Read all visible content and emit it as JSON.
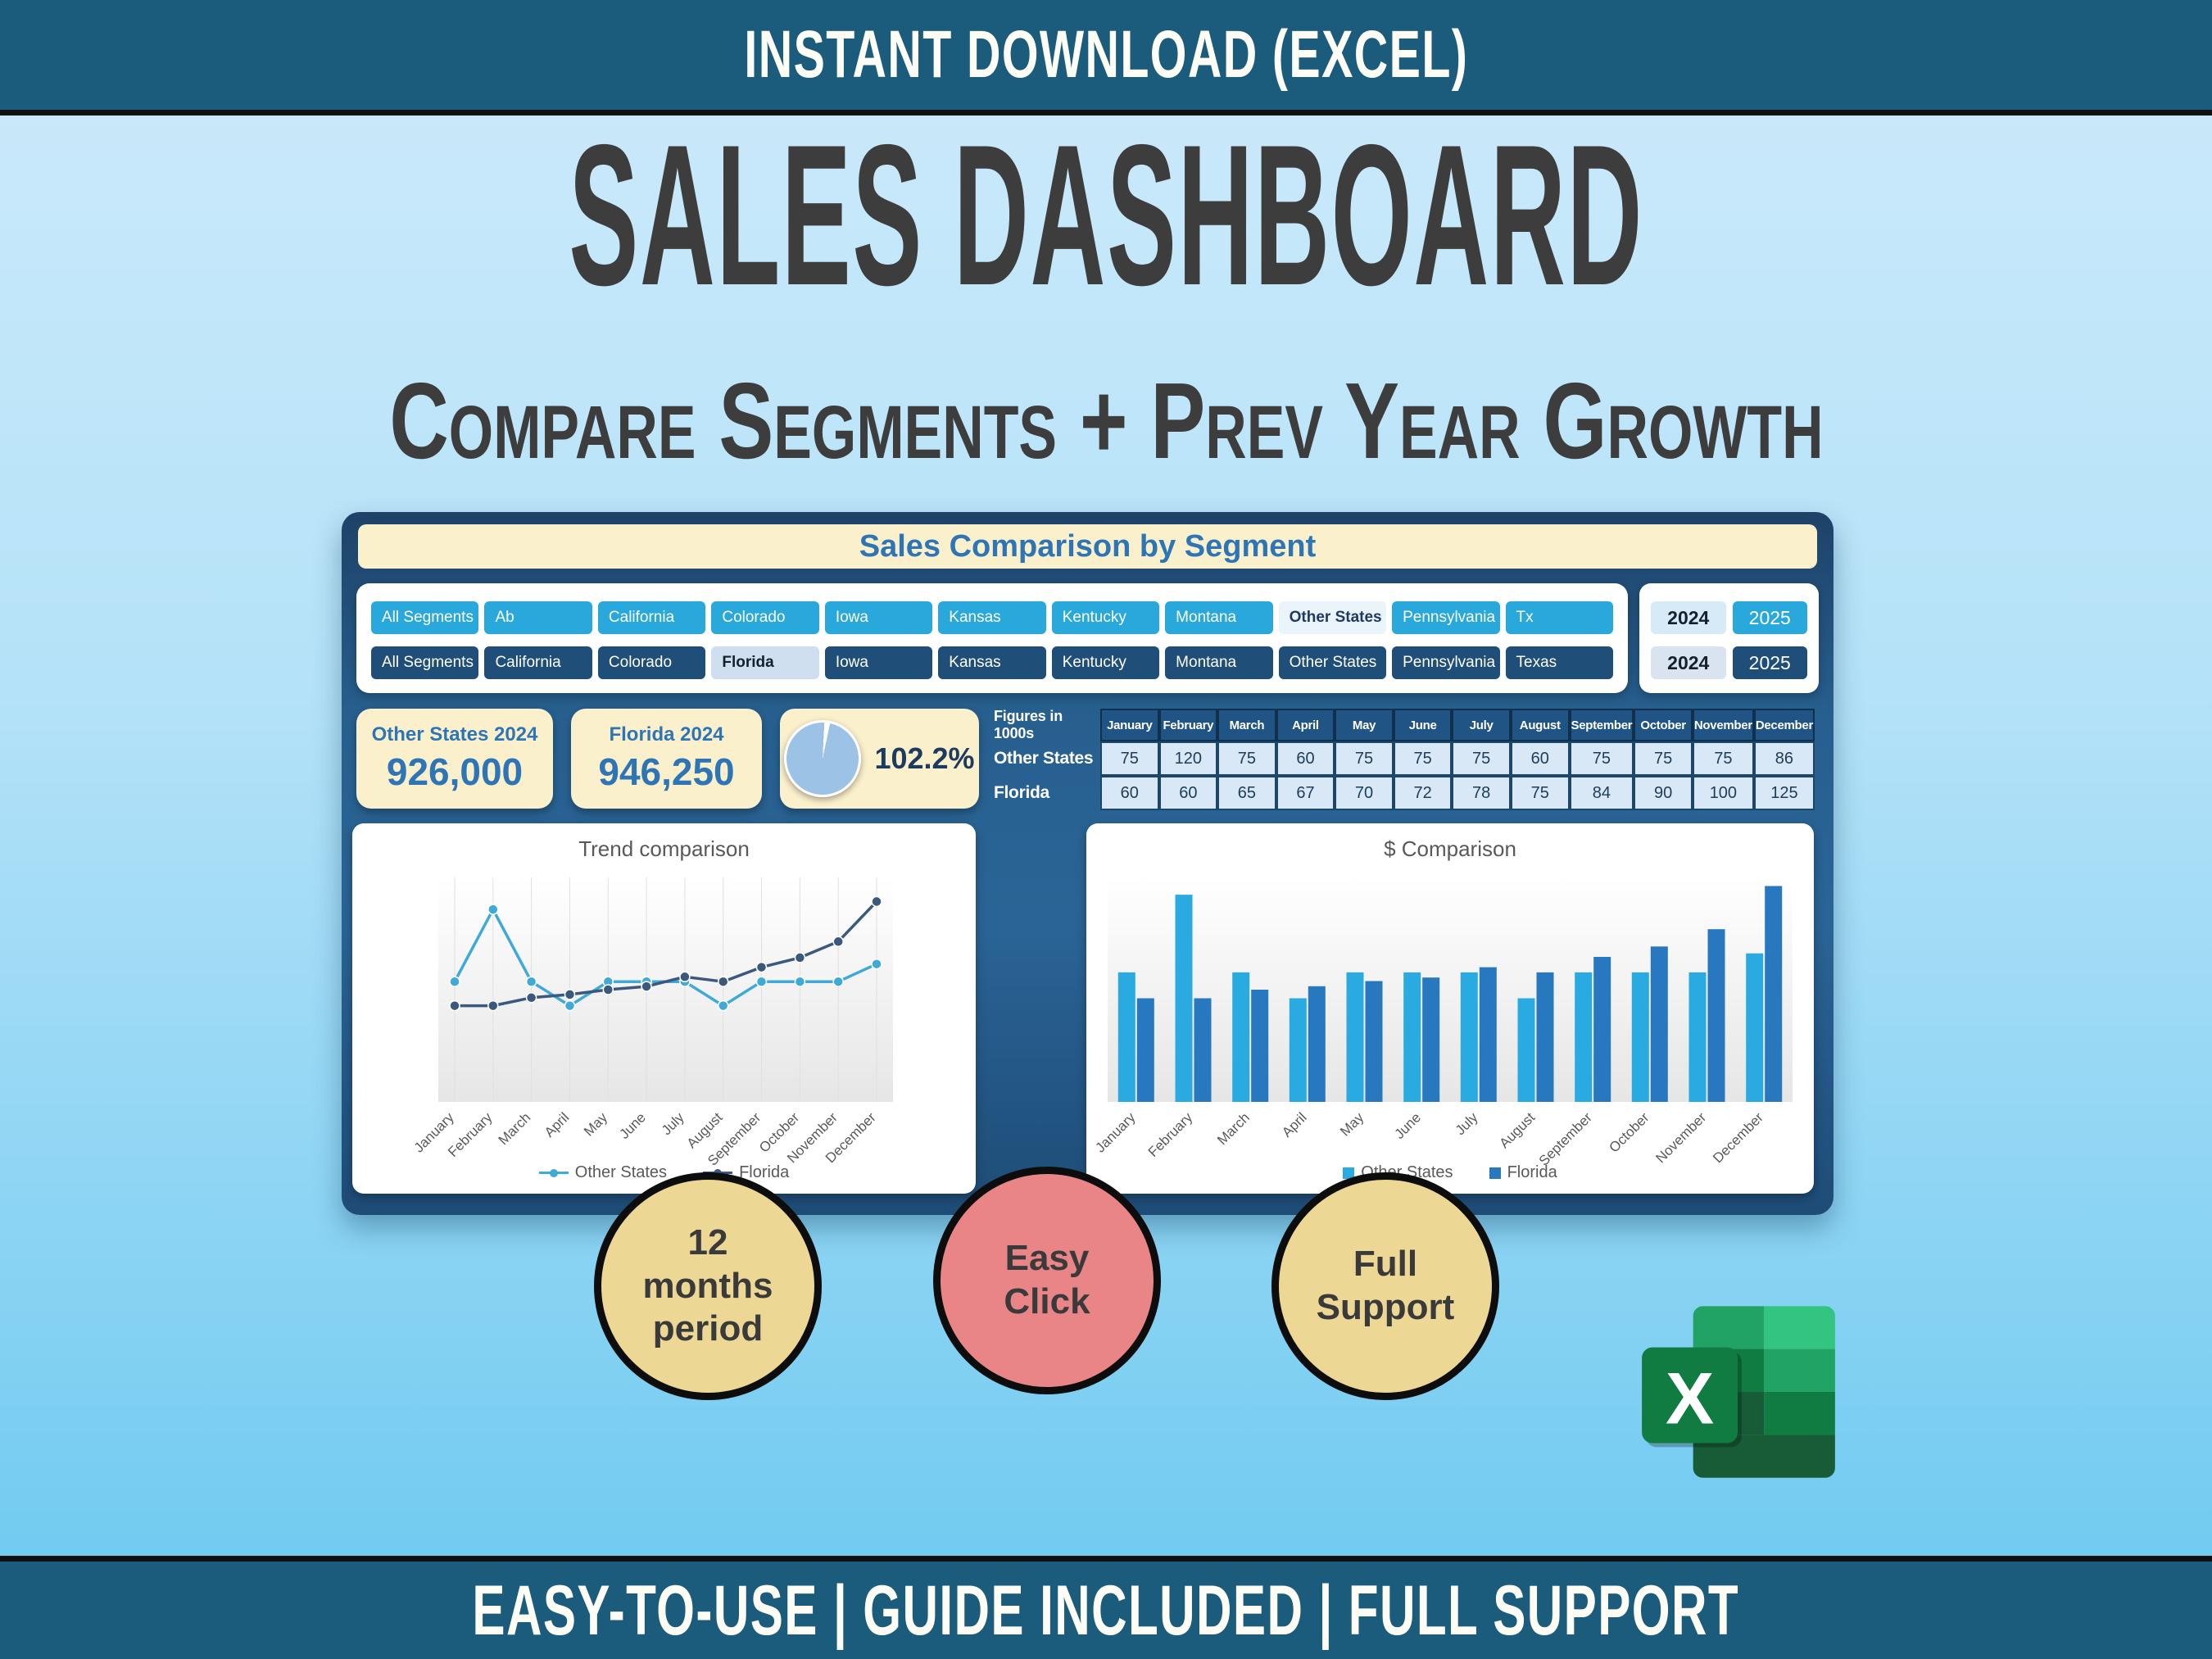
{
  "banner_top": {
    "text": "INSTANT DOWNLOAD (EXCEL)"
  },
  "hero": {
    "title": "SALES DASHBOARD",
    "subtitle": "Compare Segments + Prev Year Growth"
  },
  "dashboard": {
    "header": "Sales Comparison by Segment",
    "slicers": {
      "row_2024": {
        "items": [
          "All Segments",
          "Ab",
          "California",
          "Colorado",
          "Iowa",
          "Kansas",
          "Kentucky",
          "Montana",
          "Other States",
          "Pennsylvania",
          "Tx"
        ],
        "selected": "Other States"
      },
      "row_2025": {
        "items": [
          "All Segments",
          "California",
          "Colorado",
          "Florida",
          "Iowa",
          "Kansas",
          "Kentucky",
          "Montana",
          "Other States",
          "Pennsylvania",
          "Texas"
        ],
        "selected": "Florida"
      },
      "years_row1": {
        "options": [
          "2024",
          "2025"
        ],
        "selected": "2024"
      },
      "years_row2": {
        "options": [
          "2024",
          "2025"
        ],
        "selected": "2024"
      }
    },
    "kpis": {
      "other_states": {
        "label": "Other States 2024",
        "value": "926,000"
      },
      "florida": {
        "label": "Florida 2024",
        "value": "946,250"
      },
      "growth": {
        "value": "102.2%",
        "pie_percent": 102.2
      }
    },
    "table": {
      "corner_label": "Figures in 1000s",
      "columns": [
        "January",
        "February",
        "March",
        "April",
        "May",
        "June",
        "July",
        "August",
        "September",
        "October",
        "November",
        "December"
      ],
      "rows": [
        {
          "label": "Other States",
          "values": [
            75,
            120,
            75,
            60,
            75,
            75,
            75,
            60,
            75,
            75,
            75,
            86
          ]
        },
        {
          "label": "Florida",
          "values": [
            60,
            60,
            65,
            67,
            70,
            72,
            78,
            75,
            84,
            90,
            100,
            125
          ]
        }
      ]
    }
  },
  "chart_data": [
    {
      "type": "line",
      "title": "Trend comparison",
      "categories": [
        "January",
        "February",
        "March",
        "April",
        "May",
        "June",
        "July",
        "August",
        "September",
        "October",
        "November",
        "December"
      ],
      "series": [
        {
          "name": "Other States",
          "color": "#3fa9d8",
          "values": [
            75,
            120,
            75,
            60,
            75,
            75,
            75,
            60,
            75,
            75,
            75,
            86
          ]
        },
        {
          "name": "Florida",
          "color": "#3b587d",
          "values": [
            60,
            60,
            65,
            67,
            70,
            72,
            78,
            75,
            84,
            90,
            100,
            125
          ]
        }
      ],
      "ylim": [
        0,
        140
      ],
      "grid": "vertical-only",
      "legend_position": "bottom"
    },
    {
      "type": "bar",
      "title": "$ Comparison",
      "categories": [
        "January",
        "February",
        "March",
        "April",
        "May",
        "June",
        "July",
        "August",
        "September",
        "October",
        "November",
        "December"
      ],
      "series": [
        {
          "name": "Other States",
          "color": "#29abe2",
          "values": [
            75,
            120,
            75,
            60,
            75,
            75,
            75,
            60,
            75,
            75,
            75,
            86
          ]
        },
        {
          "name": "Florida",
          "color": "#2878c0",
          "values": [
            60,
            60,
            65,
            67,
            70,
            72,
            78,
            75,
            84,
            90,
            100,
            125
          ]
        }
      ],
      "ylim": [
        0,
        130
      ],
      "grid": "off",
      "legend_position": "bottom"
    }
  ],
  "badges": [
    {
      "text": "12\nmonths\nperiod",
      "color": "#edd795"
    },
    {
      "text": "Easy\nClick",
      "color": "#e98586"
    },
    {
      "text": "Full\nSupport",
      "color": "#edd795"
    }
  ],
  "excel_logo": {
    "letter": "X"
  },
  "banner_bottom": {
    "text": "EASY-TO-USE | GUIDE INCLUDED | FULL SUPPORT"
  },
  "colors": {
    "banner": "#1b5c7c",
    "background_top": "#cdeafb",
    "background_bottom": "#6ac8f0",
    "dashboard_bg": "#2a6496",
    "cream": "#fbf0cc",
    "kpi_text": "#2e75b6",
    "slicer_cyan": "#29a8dc",
    "slicer_navy": "#1f4e79",
    "slicer_selected_bg1": "#e9f4fb",
    "slicer_selected_text1": "#1f3864",
    "slicer_selected_bg2": "#cfdfef",
    "slicer_selected_text2": "#13202f",
    "year_selected_bg1": "#d7eaf8",
    "year_selected_bg2": "#dae3f0",
    "year_selected_text": "#15202e",
    "table_header": "#1f5484",
    "table_cell": "#d8e8f6",
    "badge_yellow": "#edd795",
    "badge_red": "#e98586",
    "pie_fill": "#9cc2e5",
    "title_text": "#3d3d3d",
    "chart_text": "#595959"
  }
}
